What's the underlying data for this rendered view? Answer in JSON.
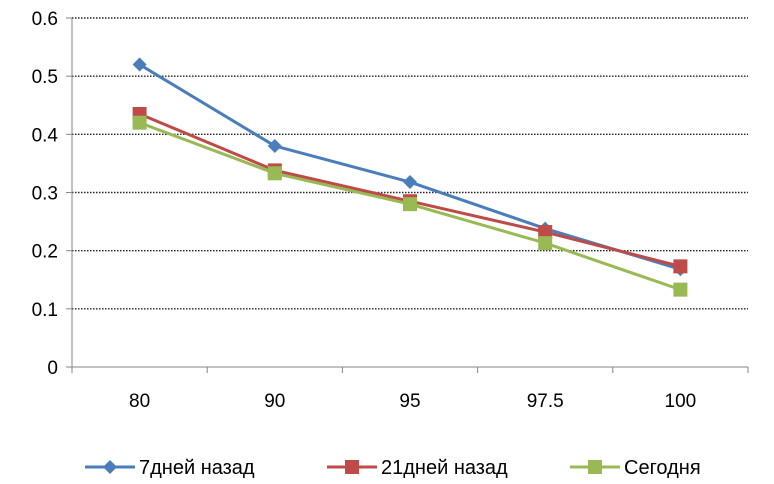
{
  "chart_data": {
    "type": "line",
    "categories": [
      "80",
      "90",
      "95",
      "97.5",
      "100"
    ],
    "series": [
      {
        "name": "7дней назад",
        "values": [
          0.52,
          0.38,
          0.318,
          0.238,
          0.168
        ],
        "color": "#4a7ebb",
        "marker": "diamond"
      },
      {
        "name": "21дней назад",
        "values": [
          0.435,
          0.338,
          0.285,
          0.232,
          0.173
        ],
        "color": "#be4b48",
        "marker": "square"
      },
      {
        "name": "Сегодня",
        "values": [
          0.42,
          0.333,
          0.28,
          0.213,
          0.133
        ],
        "color": "#98b954",
        "marker": "square"
      }
    ],
    "yticks": [
      "0",
      "0.1",
      "0.2",
      "0.3",
      "0.4",
      "0.5",
      "0.6"
    ],
    "ylim": [
      0,
      0.6
    ],
    "grid": "horizontal-dotted",
    "legend": "bottom"
  }
}
